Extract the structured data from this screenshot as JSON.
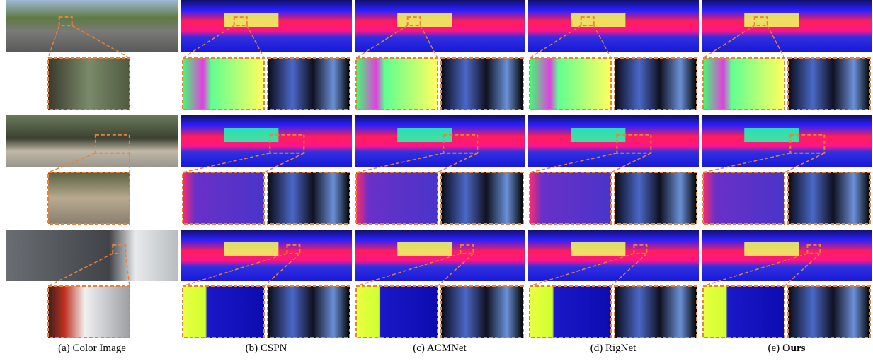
{
  "captions": [
    {
      "prefix": "(a)",
      "label": "Color Image"
    },
    {
      "prefix": "(b)",
      "label": "CSPN"
    },
    {
      "prefix": "(c)",
      "label": "ACMNet"
    },
    {
      "prefix": "(d)",
      "label": "RigNet"
    },
    {
      "prefix": "(e)",
      "label": "Ours"
    }
  ]
}
